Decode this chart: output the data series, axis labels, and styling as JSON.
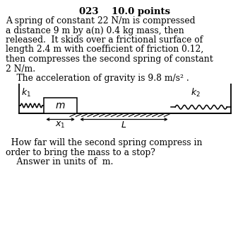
{
  "title": "023    10.0 points",
  "body_lines": [
    "A spring of constant 22 N/m is compressed",
    "a distance 9 m by a(n) 0.4 kg mass, then",
    "released.  It skids over a frictional surface of",
    "length 2.4 m with coefficient of friction 0.12,",
    "then compresses the second spring of constant",
    "2 N/m.",
    "    The acceleration of gravity is 9.8 m/s² ."
  ],
  "question_lines": [
    "  How far will the second spring compress in",
    "order to bring the mass to a stop?",
    "    Answer in units of  m."
  ],
  "bg_color": "#ffffff",
  "title_fontsize": 9.5,
  "body_fontsize": 8.8,
  "question_fontsize": 8.8
}
